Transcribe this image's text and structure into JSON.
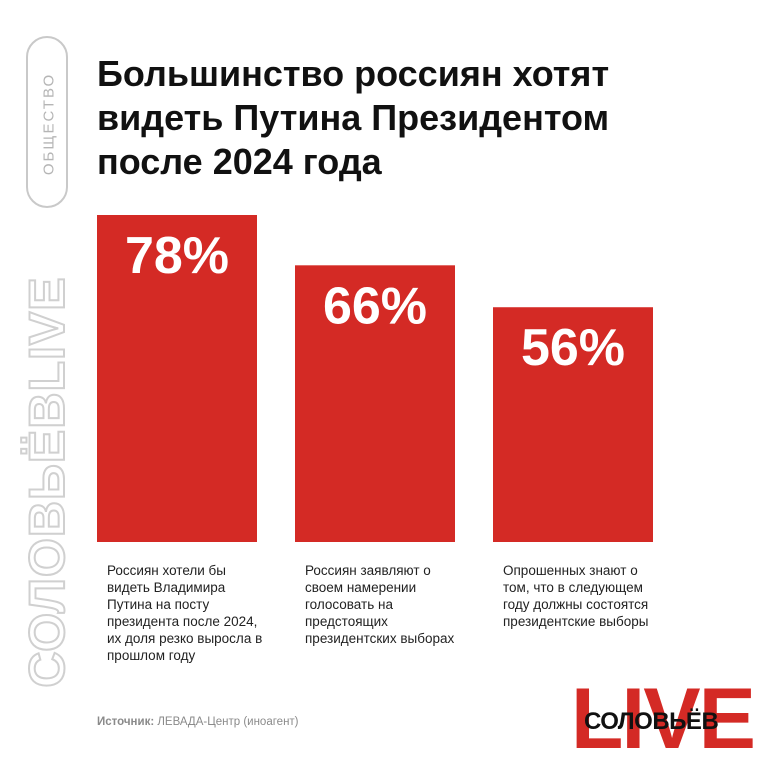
{
  "side": {
    "pill_text": "ОБЩЕСТВО",
    "brand_text": "СОЛОВЬЁВLIVE"
  },
  "title": "Большинство россиян хотят видеть Путина Президентом после 2024 года",
  "chart_data": {
    "type": "bar",
    "categories": [
      "Россиян хотели бы видеть Владимира Путина на посту президента после 2024, их доля резко выросла в прошлом году",
      "Россиян заявляют о своем намерении голосовать на предстоящих президентских выборах",
      "Опрошенных знают о том, что в следующем году должны состоятся президентские выборы"
    ],
    "values": [
      78,
      66,
      56
    ],
    "value_labels": [
      "78%",
      "66%",
      "56%"
    ],
    "ylim": [
      0,
      100
    ],
    "grid": false,
    "bar_color": "#d42a25"
  },
  "source": {
    "label": "Источник:",
    "text": "ЛЕВАДА-Центр (иноагент)"
  },
  "logo": {
    "live": "LIVE",
    "brand": "СОЛОВЬЁВ"
  }
}
